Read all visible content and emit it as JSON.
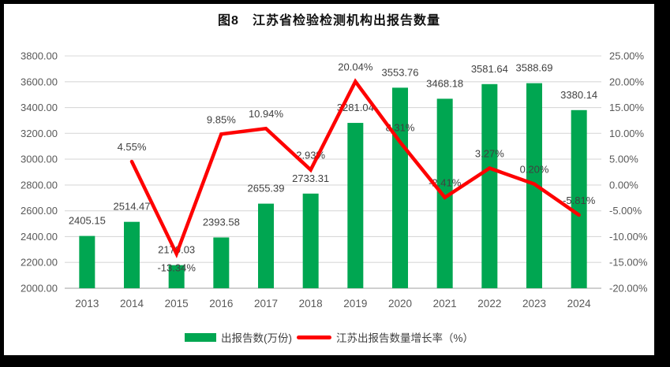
{
  "title": "图8　江苏省检验检测机构出报告数量",
  "chart_data": {
    "type": "combo",
    "title": "图8　江苏省检验检测机构出报告数量",
    "categories": [
      "2013",
      "2014",
      "2015",
      "2016",
      "2017",
      "2018",
      "2019",
      "2020",
      "2021",
      "2022",
      "2023",
      "2024"
    ],
    "series": [
      {
        "name": "出报告数(万份)",
        "type": "bar",
        "axis": "left",
        "color": "#00A651",
        "values": [
          2405.15,
          2514.47,
          2179.03,
          2393.58,
          2655.39,
          2733.31,
          3281.04,
          3553.76,
          3468.18,
          3581.64,
          3588.69,
          3380.14
        ],
        "data_labels": [
          "2405.15",
          "2514.47",
          "2179.03",
          "2393.58",
          "2655.39",
          "2733.31",
          "3281.04",
          "3553.76",
          "3468.18",
          "3581.64",
          "3588.69",
          "3380.14"
        ]
      },
      {
        "name": "江苏出报告数量增长率（%）",
        "type": "line",
        "axis": "right",
        "color": "#FE0000",
        "values": [
          null,
          4.55,
          -13.34,
          9.85,
          10.94,
          2.93,
          20.04,
          8.31,
          -2.41,
          3.27,
          0.2,
          -5.81
        ],
        "data_labels": [
          "",
          "4.55%",
          "-13.34%",
          "9.85%",
          "10.94%",
          "2.93%",
          "20.04%",
          "8.31%",
          "-2.41%",
          "3.27%",
          "0.20%",
          "-5.81%"
        ],
        "labels_below": [
          false,
          false,
          true,
          false,
          false,
          false,
          false,
          false,
          false,
          false,
          false,
          false
        ]
      }
    ],
    "left_axis": {
      "min": 2000,
      "max": 3800,
      "step": 200,
      "tick_labels": [
        "2000.00",
        "2200.00",
        "2400.00",
        "2600.00",
        "2800.00",
        "3000.00",
        "3200.00",
        "3400.00",
        "3600.00",
        "3800.00"
      ]
    },
    "right_axis": {
      "min": -20,
      "max": 25,
      "step": 5,
      "tick_labels": [
        "-20.00%",
        "-15.00%",
        "-10.00%",
        "-5.00%",
        "0.00%",
        "5.00%",
        "10.00%",
        "15.00%",
        "20.00%",
        "25.00%"
      ]
    },
    "grid": true,
    "legend_position": "bottom"
  },
  "legend": {
    "items": [
      {
        "label": "出报告数(万份)",
        "type": "bar",
        "color": "#00A651"
      },
      {
        "label": "江苏出报告数量增长率（%）",
        "type": "line",
        "color": "#FE0000"
      }
    ]
  },
  "colors": {
    "bar_green": "#00A651",
    "line_red": "#FE0000",
    "gridline": "#D9D9D9",
    "axis_line": "#BFBFBF",
    "axis_text": "#595959",
    "label_text": "#404040",
    "frame_border": "#000000",
    "background": "#FFFFFF"
  }
}
